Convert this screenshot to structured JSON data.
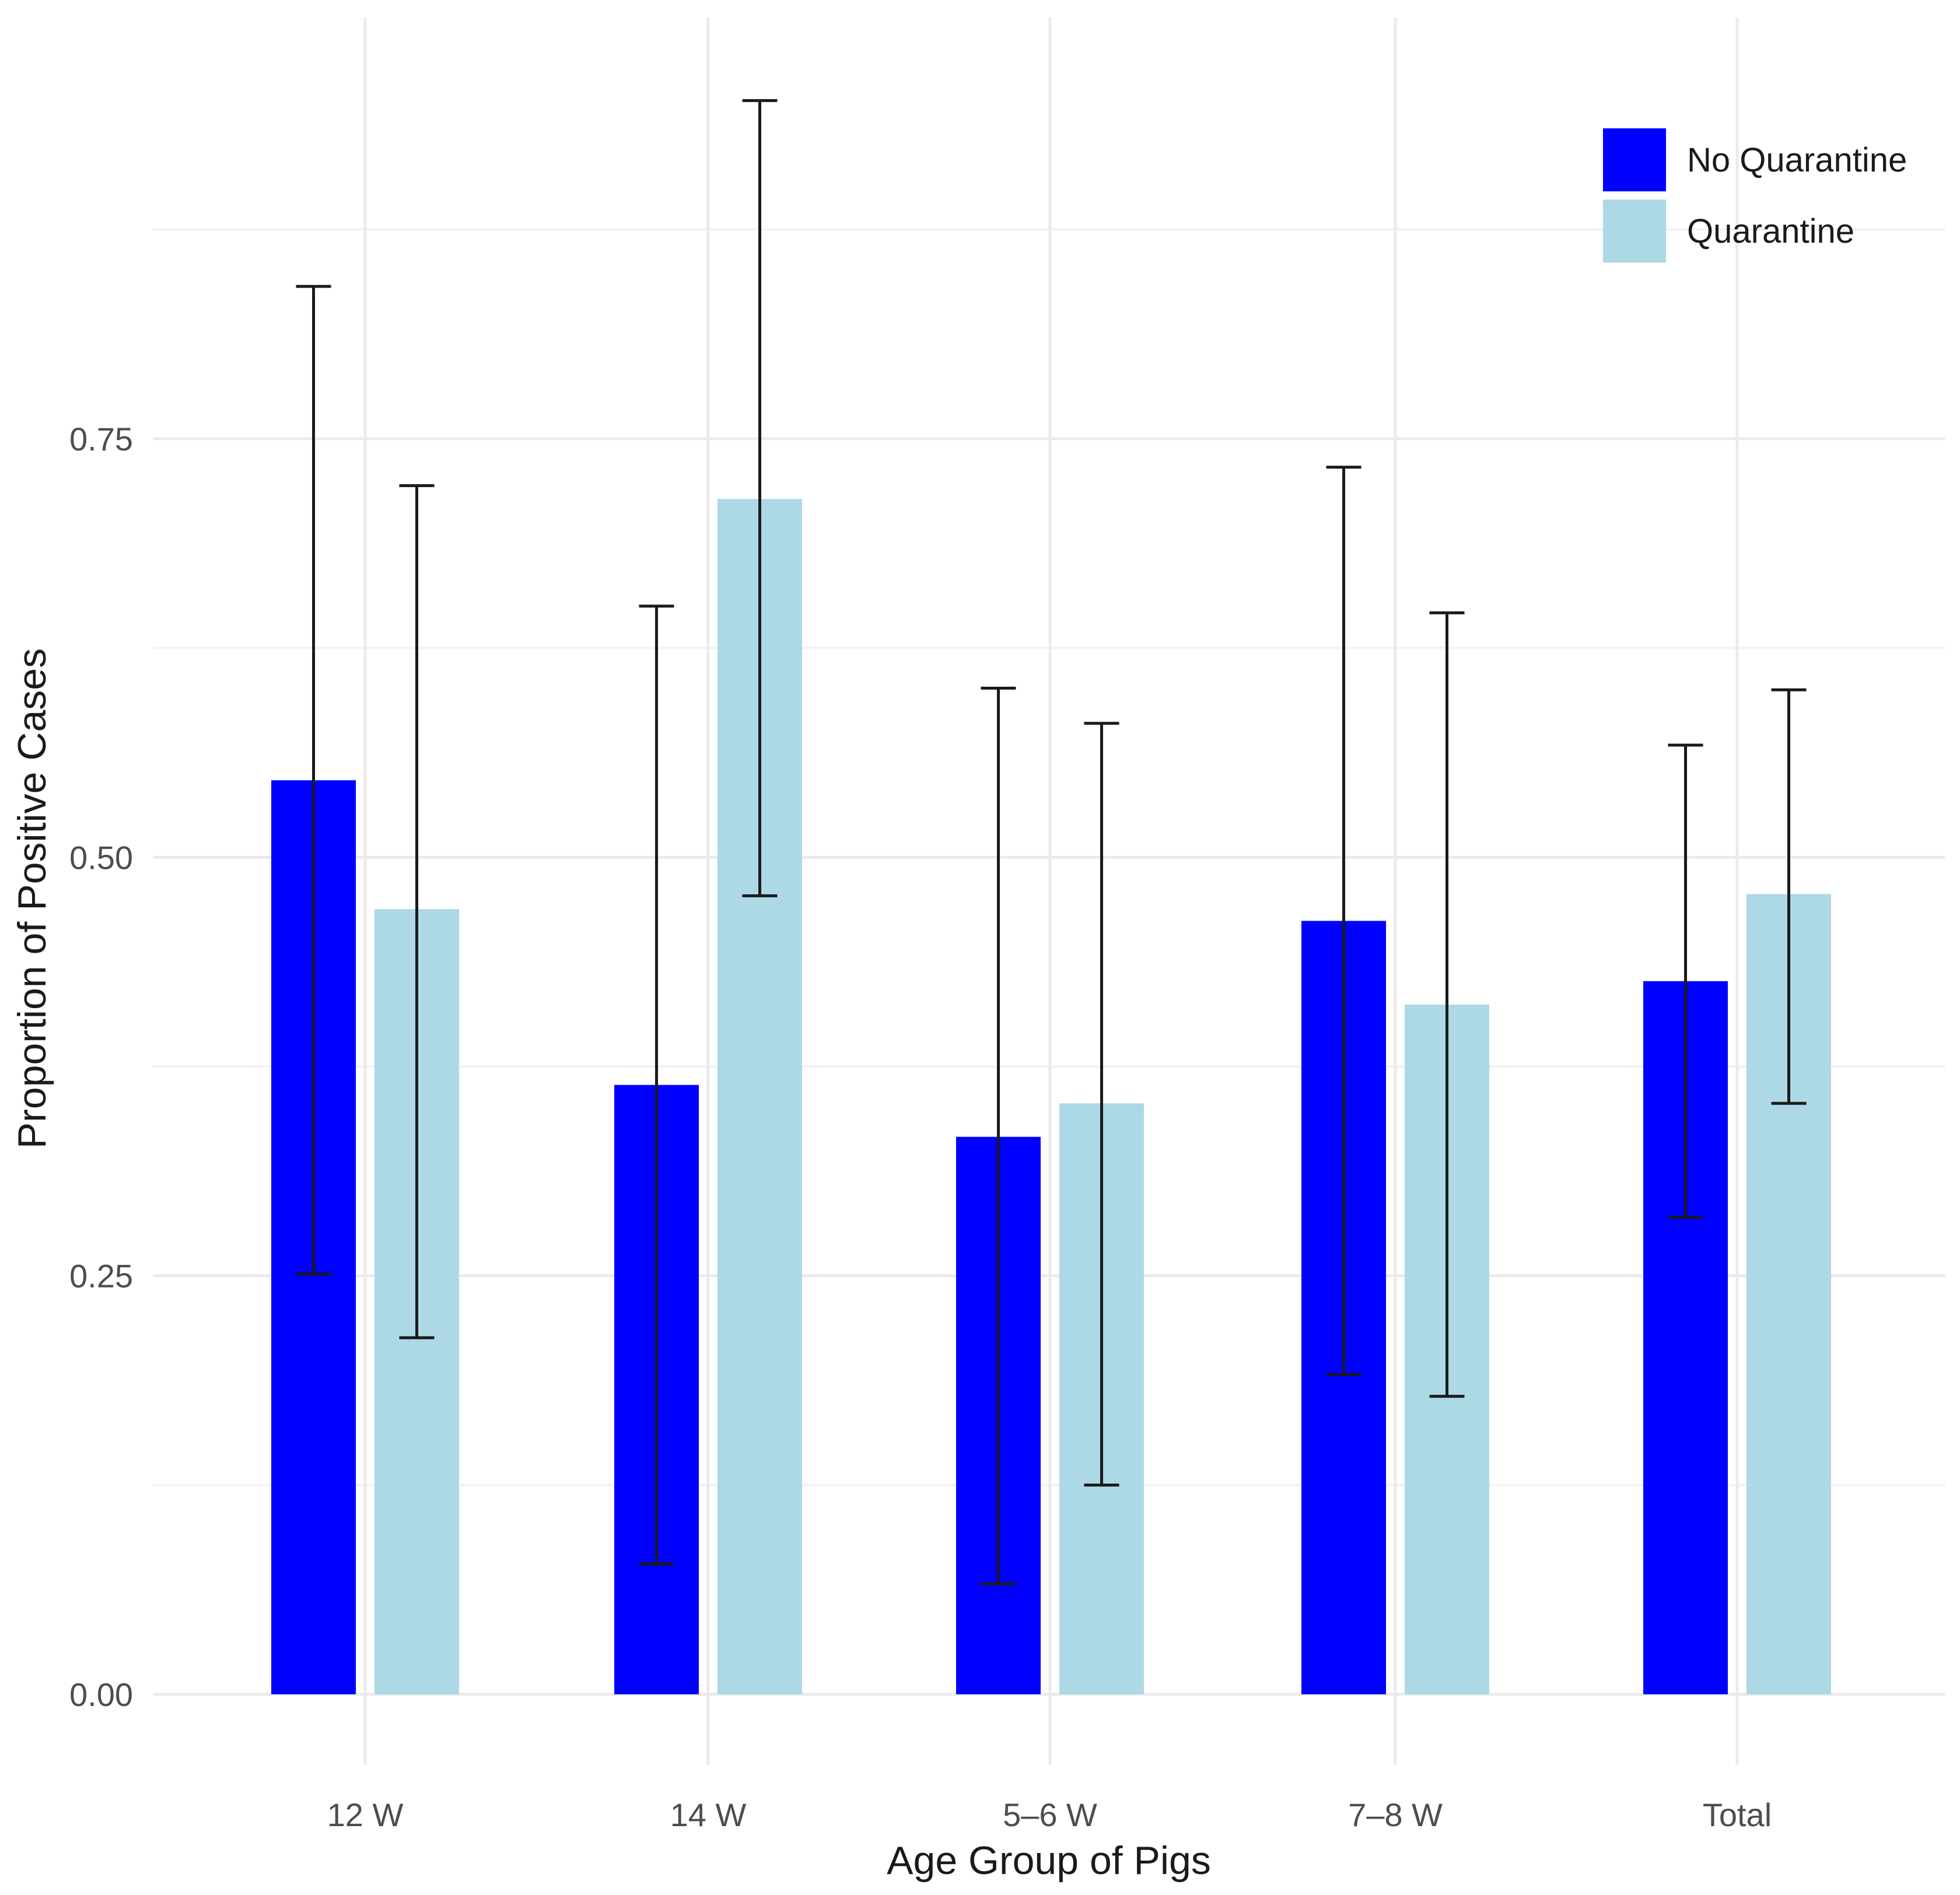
{
  "chart_data": {
    "type": "bar",
    "xlabel": "Age Group of Pigs",
    "ylabel": "Proportion of Positive Cases",
    "categories": [
      "12 W",
      "14 W",
      "5–6 W",
      "7–8 W",
      "Total"
    ],
    "y_ticks": [
      "0.00",
      "0.25",
      "0.50",
      "0.75"
    ],
    "ylim": [
      -0.04,
      1.0
    ],
    "grid": true,
    "legend_position": "top-right",
    "series": [
      {
        "name": "No Quarantine",
        "color": "#0000ff",
        "values": [
          0.546,
          0.364,
          0.333,
          0.462,
          0.426
        ],
        "error_low": [
          0.251,
          0.078,
          0.066,
          0.191,
          0.285
        ],
        "error_high": [
          0.841,
          0.65,
          0.601,
          0.733,
          0.567
        ]
      },
      {
        "name": "Quarantine",
        "color": "#add8e6",
        "values": [
          0.469,
          0.714,
          0.353,
          0.412,
          0.478
        ],
        "error_low": [
          0.213,
          0.477,
          0.125,
          0.178,
          0.353
        ],
        "error_high": [
          0.722,
          0.952,
          0.58,
          0.646,
          0.6
        ]
      }
    ]
  }
}
